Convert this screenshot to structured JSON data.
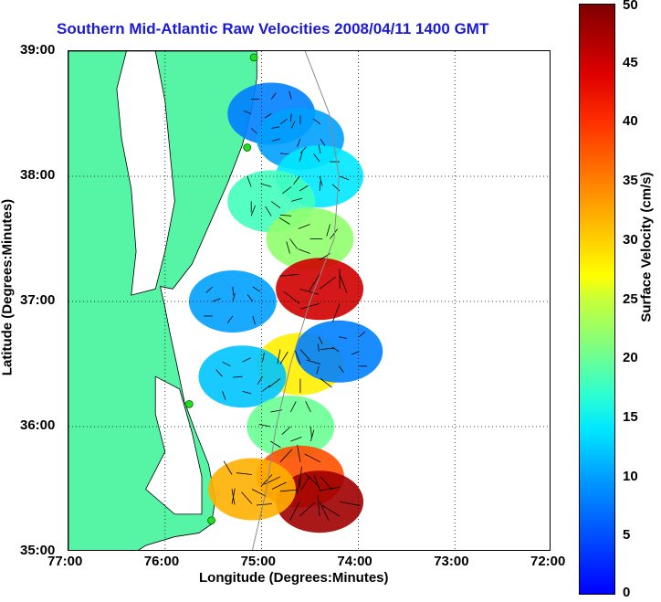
{
  "title": "Southern Mid-Atlantic Raw Velocities 2008/04/11 1400 GMT",
  "xlabel": "Longitude (Degrees:Minutes)",
  "ylabel": "Latitude (Degrees:Minutes)",
  "x_ticks": [
    "77:00",
    "76:00",
    "75:00",
    "74:00",
    "73:00",
    "72:00"
  ],
  "y_ticks": [
    "39:00",
    "38:00",
    "37:00",
    "36:00",
    "35:00"
  ],
  "colorbar": {
    "label": "Surface Velocity (cm/s)",
    "ticks": [
      "50",
      "45",
      "40",
      "35",
      "30",
      "25",
      "20",
      "15",
      "10",
      "5",
      "0"
    ],
    "range": [
      0,
      50
    ]
  },
  "colors": {
    "land": "#55f5a5",
    "title": "#1a1ad8",
    "stations": "#22dd22"
  },
  "map": {
    "lon_range": [
      -77,
      -72
    ],
    "lat_range": [
      35,
      39
    ],
    "grid": true,
    "stations": [
      {
        "lon": -75.08,
        "lat": 38.95
      },
      {
        "lon": -75.15,
        "lat": 38.23
      },
      {
        "lon": -75.75,
        "lat": 36.18
      },
      {
        "lon": -75.52,
        "lat": 35.25
      }
    ],
    "velocity_regions": [
      {
        "lon": -74.9,
        "lat": 38.5,
        "speed": 8
      },
      {
        "lon": -74.6,
        "lat": 38.3,
        "speed": 10
      },
      {
        "lon": -74.4,
        "lat": 38.0,
        "speed": 14
      },
      {
        "lon": -74.9,
        "lat": 37.8,
        "speed": 18
      },
      {
        "lon": -74.5,
        "lat": 37.5,
        "speed": 22
      },
      {
        "lon": -74.4,
        "lat": 37.1,
        "speed": 45
      },
      {
        "lon": -75.3,
        "lat": 37.0,
        "speed": 10
      },
      {
        "lon": -74.6,
        "lat": 36.5,
        "speed": 28
      },
      {
        "lon": -74.2,
        "lat": 36.6,
        "speed": 8
      },
      {
        "lon": -75.2,
        "lat": 36.4,
        "speed": 12
      },
      {
        "lon": -74.7,
        "lat": 36.0,
        "speed": 20
      },
      {
        "lon": -74.6,
        "lat": 35.6,
        "speed": 38
      },
      {
        "lon": -74.4,
        "lat": 35.4,
        "speed": 48
      },
      {
        "lon": -75.1,
        "lat": 35.5,
        "speed": 32
      }
    ]
  }
}
